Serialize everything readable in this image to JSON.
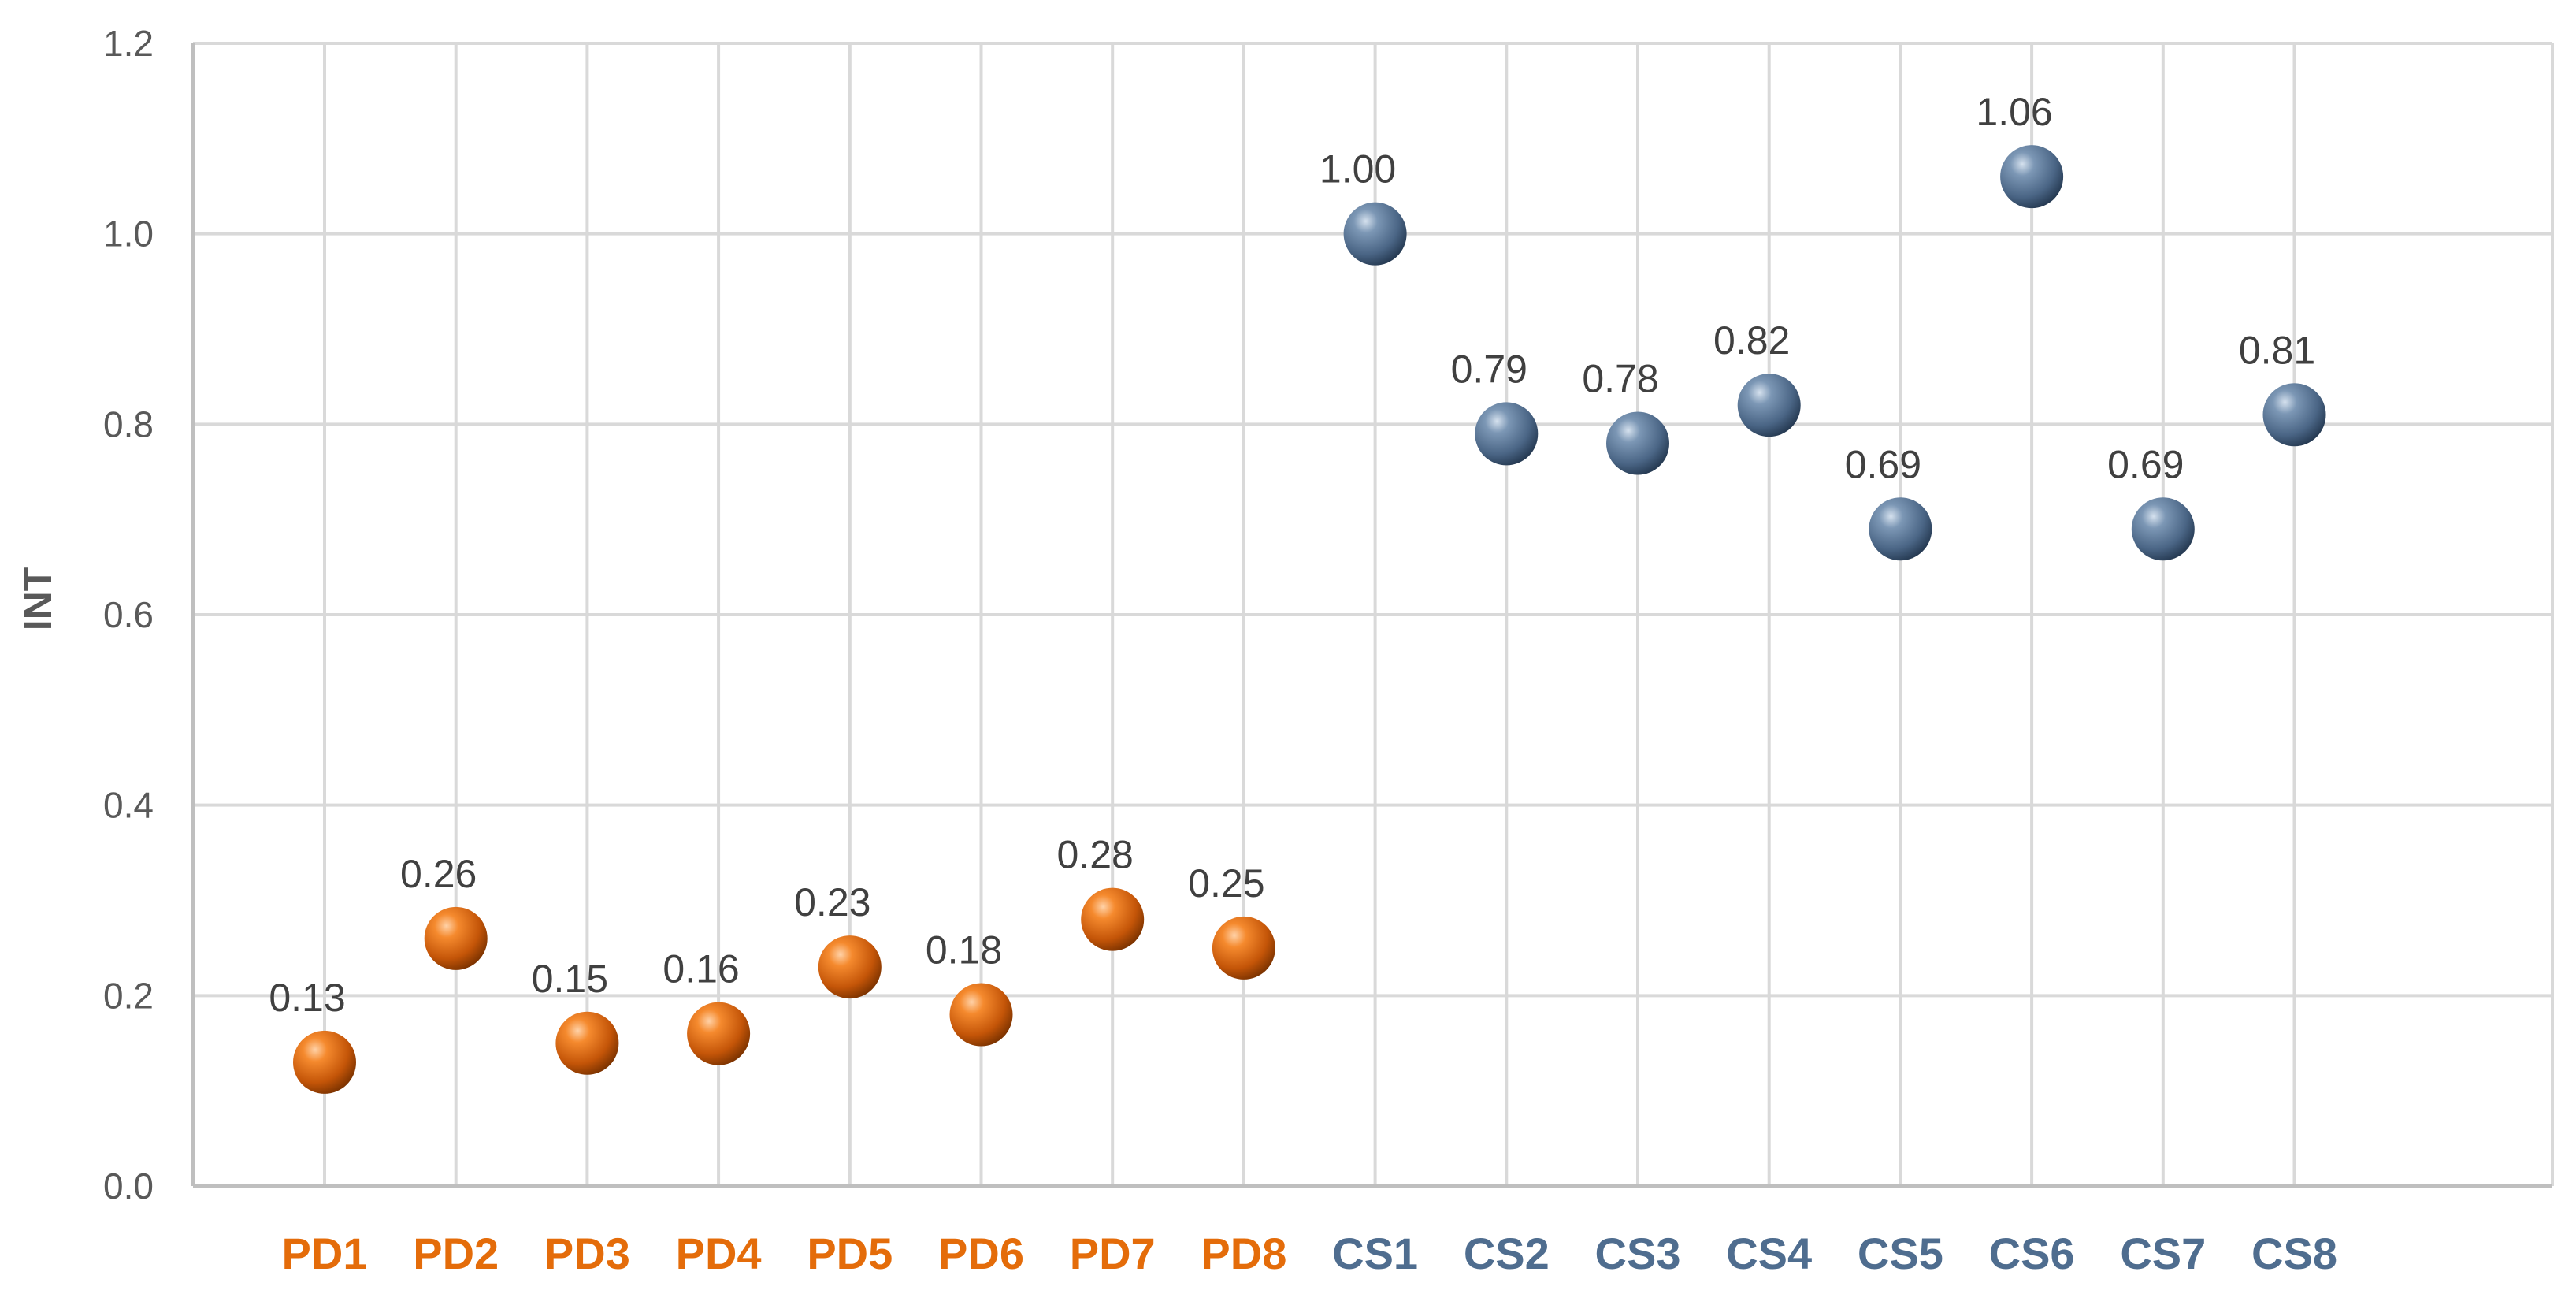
{
  "chart_data": {
    "type": "scatter",
    "ylabel": "INT",
    "ylim": [
      0,
      1.2
    ],
    "ytick_labels": [
      "0.0",
      "0.2",
      "0.4",
      "0.6",
      "0.8",
      "1.0",
      "1.2"
    ],
    "grid": true,
    "categories": [
      "PD1",
      "PD2",
      "PD3",
      "PD4",
      "PD5",
      "PD6",
      "PD7",
      "PD8",
      "CS1",
      "CS2",
      "CS3",
      "CS4",
      "CS5",
      "CS6",
      "CS7",
      "CS8"
    ],
    "series": [
      {
        "color": "#e46c0a",
        "categories": [
          "PD1",
          "PD2",
          "PD3",
          "PD4",
          "PD5",
          "PD6",
          "PD7",
          "PD8"
        ],
        "values": [
          0.13,
          0.26,
          0.15,
          0.16,
          0.23,
          0.18,
          0.28,
          0.25
        ],
        "labels": [
          "0.13",
          "0.26",
          "0.15",
          "0.16",
          "0.23",
          "0.18",
          "0.28",
          "0.25"
        ]
      },
      {
        "color": "#4f6d8f",
        "categories": [
          "CS1",
          "CS2",
          "CS3",
          "CS4",
          "CS5",
          "CS6",
          "CS7",
          "CS8"
        ],
        "values": [
          1.0,
          0.79,
          0.78,
          0.82,
          0.69,
          1.06,
          0.69,
          0.81
        ],
        "labels": [
          "1.00",
          "0.79",
          "0.78",
          "0.82",
          "0.69",
          "1.06",
          "0.69",
          "0.81"
        ]
      }
    ]
  }
}
